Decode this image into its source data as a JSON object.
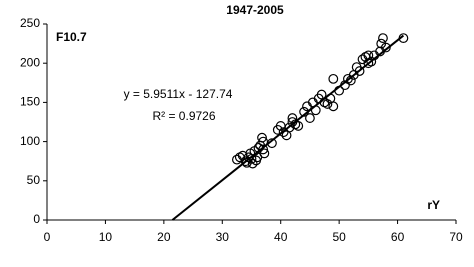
{
  "chart_data": {
    "type": "scatter",
    "title": "1947-2005",
    "panel_label": "F10.7",
    "x_axis_label": "rY",
    "x": [
      32.5,
      33,
      33.5,
      34,
      34.2,
      34.5,
      34.8,
      35,
      35.2,
      35.5,
      35.8,
      36,
      36.2,
      36.5,
      36.8,
      37,
      37.2,
      37,
      38.5,
      39.5,
      40,
      40.5,
      41,
      41.5,
      42,
      42,
      42.5,
      43,
      44,
      44.5,
      45,
      45.5,
      46,
      46.5,
      47,
      47.5,
      48,
      48.5,
      49,
      49,
      50,
      51,
      51.5,
      52,
      52.5,
      53,
      53.5,
      54,
      54.5,
      55,
      55.5,
      56,
      57,
      57.2,
      57.5,
      58,
      61,
      55
    ],
    "values": [
      77,
      80,
      82,
      75,
      73,
      80,
      85,
      78,
      72,
      88,
      76,
      80,
      92,
      95,
      105,
      100,
      85,
      90,
      98,
      115,
      120,
      112,
      108,
      118,
      125,
      130,
      122,
      120,
      138,
      145,
      130,
      150,
      140,
      155,
      160,
      150,
      148,
      155,
      180,
      145,
      165,
      172,
      180,
      178,
      185,
      195,
      190,
      205,
      208,
      200,
      202,
      210,
      215,
      225,
      232,
      220,
      232,
      210
    ],
    "marker_color": "#000000",
    "trendline": {
      "slope": 5.9511,
      "intercept": -127.74,
      "label": "y = 5.9511x - 127.74",
      "r2_label": "R² = 0.9726",
      "color": "#000000"
    },
    "xlim": [
      0,
      70
    ],
    "xticks": [
      0,
      10,
      20,
      30,
      40,
      50,
      60,
      70
    ],
    "ylim": [
      0,
      250
    ],
    "yticks": [
      0,
      50,
      100,
      150,
      200,
      250
    ],
    "grid": false
  }
}
